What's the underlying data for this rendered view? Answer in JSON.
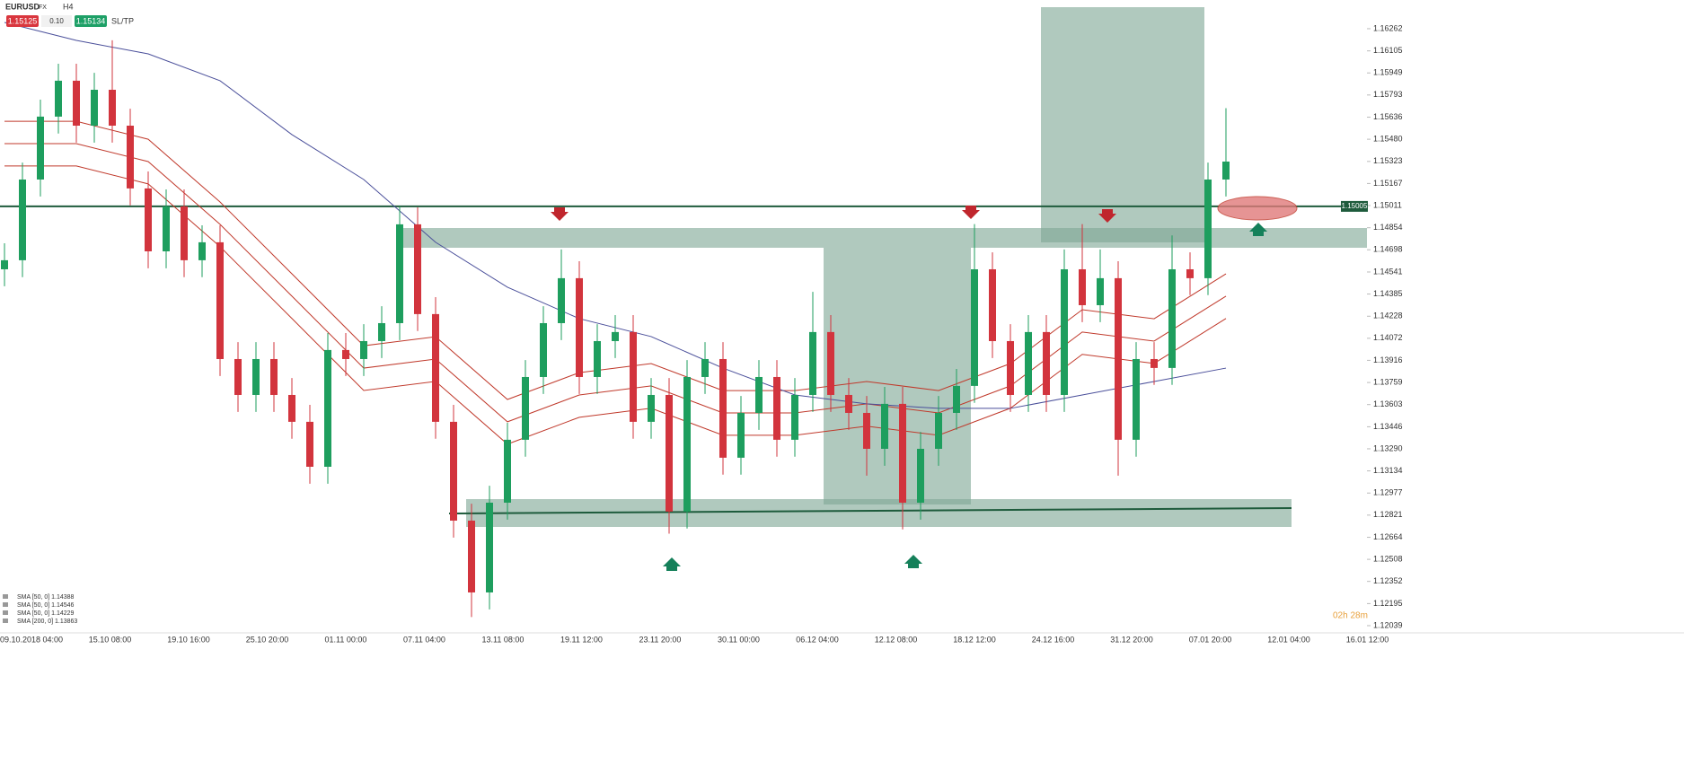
{
  "toolbar": {
    "symbol": "EURUSD",
    "market": "FX",
    "timeframe": "H4",
    "sell": "1.15125",
    "size": "0.10",
    "buy": "1.15134",
    "sltp": "SL/TP"
  },
  "timer": "02h 28m",
  "legend": [
    "SMA [50, 0] 1.14388",
    "SMA [50, 0] 1.14546",
    "SMA [50, 0] 1.14229",
    "SMA [200, 0] 1.13863"
  ],
  "chart_data": {
    "type": "candlestick",
    "ylim": [
      1.11988,
      1.16465
    ],
    "yticks": [
      1.16262,
      1.16105,
      1.15949,
      1.15793,
      1.15636,
      {
        "value": 1.1548,
        "label": "1.15480"
      },
      1.15323,
      1.15167,
      1.15011,
      1.14854,
      1.14698,
      1.14541,
      1.14385,
      1.14228,
      1.14072,
      1.13916,
      1.13759,
      1.13603,
      1.13446,
      {
        "value": 1.1329,
        "label": "1.13290"
      },
      1.13134,
      1.12977,
      1.12821,
      1.12664,
      1.12508,
      1.12352,
      1.12195,
      1.12039
    ],
    "xlabels": [
      "09.10.2018 04:00",
      "15.10 08:00",
      "19.10 16:00",
      "25.10 20:00",
      "01.11 00:00",
      "07.11 04:00",
      "13.11 08:00",
      "19.11 12:00",
      "23.11 20:00",
      "30.11 00:00",
      "06.12 04:00",
      "12.12 08:00",
      "18.12 12:00",
      "24.12 16:00",
      "31.12 20:00",
      "07.01 20:00",
      "12.01 04:00",
      "16.01 12:00"
    ],
    "current_price": 1.15005,
    "up_color": "#1e9e5e",
    "down_color": "#d2343d",
    "open": [
      1.1456,
      1.14624,
      1.15195,
      1.1564,
      1.15894,
      1.15576,
      1.1583,
      1.15576,
      1.15132,
      1.14687,
      1.15005,
      1.14624,
      1.14751,
      1.13925,
      1.13671,
      1.13925,
      1.13671,
      1.13481,
      1.13163,
      1.13989,
      1.13925,
      1.14052,
      1.14179,
      1.14878,
      1.14243,
      1.13481,
      1.12782,
      1.12274,
      1.12909,
      1.13354,
      1.13798,
      1.14179,
      1.14497,
      1.13798,
      1.14052,
      1.14116,
      1.13481,
      1.13671,
      1.12846,
      1.13798,
      1.13925,
      1.13227,
      1.13544,
      1.13798,
      1.13354,
      1.13671,
      1.14116,
      1.13671,
      1.13544,
      1.1329,
      1.13608,
      1.12909,
      1.1329,
      1.13544,
      1.13735,
      1.1456,
      1.14052,
      1.13671,
      1.14116,
      1.13671,
      1.1456,
      1.14306,
      1.14497,
      1.13354,
      1.13925,
      1.13862,
      1.1456,
      1.14497,
      1.15195
    ],
    "high": [
      1.14744,
      1.15315,
      1.1576,
      1.16014,
      1.16014,
      1.1595,
      1.1618,
      1.15696,
      1.15252,
      1.15125,
      1.15125,
      1.14871,
      1.14871,
      1.14045,
      1.14045,
      1.14045,
      1.13791,
      1.13601,
      1.14109,
      1.14109,
      1.14172,
      1.14299,
      1.15005,
      1.14998,
      1.14363,
      1.13601,
      1.12902,
      1.13029,
      1.13474,
      1.13918,
      1.14299,
      1.147,
      1.14617,
      1.14172,
      1.14236,
      1.14236,
      1.13791,
      1.13791,
      1.13918,
      1.14045,
      1.14045,
      1.13664,
      1.13918,
      1.13918,
      1.13791,
      1.144,
      1.14236,
      1.13791,
      1.13664,
      1.13728,
      1.13728,
      1.1341,
      1.13664,
      1.13855,
      1.1488,
      1.1468,
      1.14172,
      1.14236,
      1.14236,
      1.147,
      1.1488,
      1.147,
      1.14617,
      1.14045,
      1.14045,
      1.148,
      1.1468,
      1.15315,
      1.157
    ],
    "low": [
      1.1444,
      1.14504,
      1.15075,
      1.1552,
      1.15456,
      1.15456,
      1.15456,
      1.15012,
      1.14567,
      1.14567,
      1.14504,
      1.14504,
      1.13805,
      1.13551,
      1.13551,
      1.13551,
      1.13361,
      1.13043,
      1.13043,
      1.13805,
      1.13805,
      1.13932,
      1.14059,
      1.14123,
      1.13361,
      1.12662,
      1.121,
      1.12154,
      1.12789,
      1.13234,
      1.13678,
      1.14059,
      1.13678,
      1.13678,
      1.13932,
      1.13361,
      1.13361,
      1.1269,
      1.12726,
      1.13678,
      1.13107,
      1.13107,
      1.13424,
      1.13234,
      1.13234,
      1.13551,
      1.13551,
      1.13424,
      1.131,
      1.1317,
      1.1272,
      1.12789,
      1.1317,
      1.13424,
      1.13615,
      1.13932,
      1.13551,
      1.13551,
      1.13551,
      1.13551,
      1.14186,
      1.14186,
      1.131,
      1.13234,
      1.13742,
      1.13742,
      1.14377,
      1.14377,
      1.15075
    ],
    "close": [
      1.14624,
      1.15195,
      1.1564,
      1.15894,
      1.15576,
      1.1583,
      1.15576,
      1.15132,
      1.14687,
      1.15005,
      1.14624,
      1.14751,
      1.13925,
      1.13671,
      1.13925,
      1.13671,
      1.13481,
      1.13163,
      1.13989,
      1.13925,
      1.14052,
      1.14179,
      1.14878,
      1.14243,
      1.13481,
      1.12782,
      1.12274,
      1.12909,
      1.13354,
      1.13798,
      1.14179,
      1.14497,
      1.13798,
      1.14052,
      1.14116,
      1.13481,
      1.13671,
      1.12846,
      1.13798,
      1.13925,
      1.13227,
      1.13544,
      1.13798,
      1.13354,
      1.13671,
      1.14116,
      1.13671,
      1.13544,
      1.1329,
      1.13608,
      1.12909,
      1.1329,
      1.13544,
      1.13735,
      1.1456,
      1.14052,
      1.13671,
      1.14116,
      1.13671,
      1.1456,
      1.14306,
      1.14497,
      1.13354,
      1.13925,
      1.13862,
      1.1456,
      1.14497,
      1.15195,
      1.15322
    ],
    "ma_x": [
      0,
      4,
      8,
      12,
      16,
      20,
      24,
      28,
      32,
      36,
      40,
      44,
      48,
      52,
      56,
      60,
      64,
      68
    ],
    "series": [
      {
        "color": "#c0392b",
        "values": [
          1.15449,
          1.15449,
          1.15322,
          1.14878,
          1.1437,
          1.13861,
          1.13925,
          1.13481,
          1.13671,
          1.13735,
          1.13544,
          1.13544,
          1.13608,
          1.13544,
          1.13735,
          1.14116,
          1.14052,
          1.1437
        ]
      },
      {
        "color": "#c0392b",
        "values": [
          1.15607,
          1.15607,
          1.1548,
          1.15036,
          1.14528,
          1.14019,
          1.14083,
          1.13639,
          1.13829,
          1.13893,
          1.13702,
          1.13702,
          1.13766,
          1.13702,
          1.13893,
          1.14274,
          1.1421,
          1.14528
        ]
      },
      {
        "color": "#c0392b",
        "values": [
          1.15291,
          1.15291,
          1.15164,
          1.1472,
          1.14212,
          1.13703,
          1.13767,
          1.13323,
          1.13513,
          1.13577,
          1.13386,
          1.13386,
          1.1345,
          1.13386,
          1.13577,
          1.13958,
          1.13894,
          1.14212
        ]
      },
      {
        "color": "#4a4f9a",
        "values": [
          1.16306,
          1.16179,
          1.16084,
          1.15894,
          1.15513,
          1.15195,
          1.14751,
          1.14433,
          1.14211,
          1.14084,
          1.13861,
          1.13671,
          1.13608,
          1.13576,
          1.13576,
          1.13671,
          1.13766,
          1.13861
        ]
      }
    ]
  }
}
